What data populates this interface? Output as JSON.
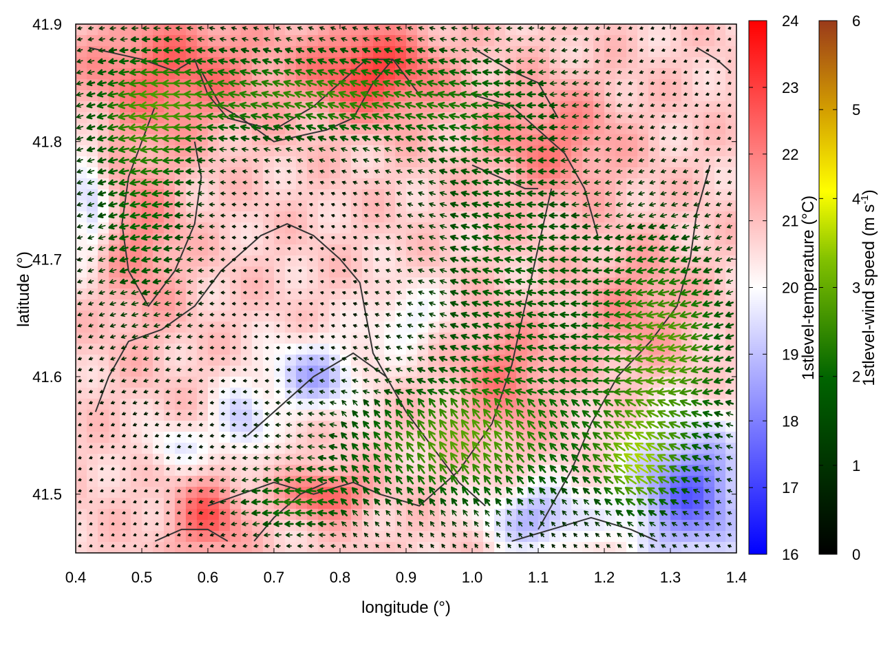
{
  "chart_data": {
    "type": "heatmap",
    "title": "",
    "xlabel": "longitude (°)",
    "ylabel": "latitude (°)",
    "xlim": [
      0.4,
      1.4
    ],
    "ylim": [
      41.45,
      41.9
    ],
    "x_ticks": [
      "0.4",
      "0.5",
      "0.6",
      "0.7",
      "0.8",
      "0.9",
      "1.0",
      "1.1",
      "1.2",
      "1.3",
      "1.4"
    ],
    "y_ticks": [
      "41.5",
      "41.6",
      "41.7",
      "41.8",
      "41.9"
    ],
    "grid": false,
    "fill_variable": {
      "name": "1stlevel-temperature",
      "label": "1stlevel-temperature (°C)",
      "range": [
        16,
        24
      ],
      "ticks": [
        "16",
        "17",
        "18",
        "19",
        "20",
        "21",
        "22",
        "23",
        "24"
      ],
      "colors": [
        "#0000ff",
        "#ffffff",
        "#ff0000"
      ]
    },
    "arrow_variable": {
      "name": "1stlevel-wind speed",
      "label_main": "1stlevel-wind speed (m s",
      "label_sup": "-1",
      "label_end": ")",
      "range": [
        0,
        6
      ],
      "ticks": [
        "0",
        "1",
        "2",
        "3",
        "4",
        "5",
        "6"
      ],
      "colors": [
        "#000000",
        "#006400",
        "#80c000",
        "#ffff00",
        "#d4a000",
        "#9a3a1a"
      ]
    },
    "coastline_color": "#333333"
  }
}
